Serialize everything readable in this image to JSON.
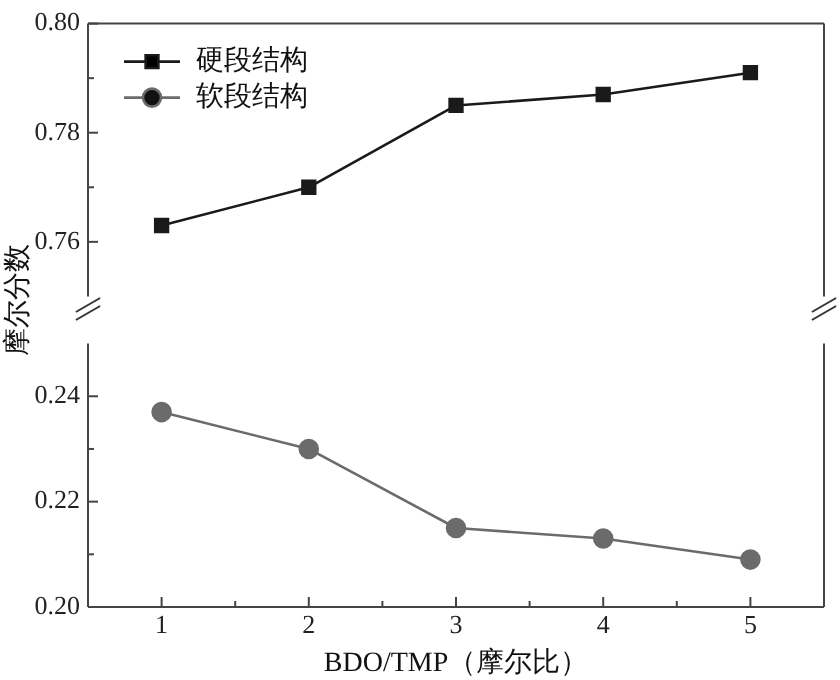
{
  "chart_data": [
    {
      "type": "line",
      "x": [
        1,
        2,
        3,
        4,
        5
      ],
      "xlim": [
        0.5,
        5.5
      ],
      "ylim": [
        0.75,
        0.8
      ],
      "yticks": [
        {
          "value": 0.76,
          "label": "0.76"
        },
        {
          "value": 0.77,
          "label": null
        },
        {
          "value": 0.78,
          "label": "0.78"
        },
        {
          "value": 0.79,
          "label": null
        },
        {
          "value": 0.8,
          "label": "0.80"
        }
      ],
      "tick_labels": "y",
      "legend": "top left",
      "series": [
        {
          "name": "硬段结构",
          "color": "#1a1a1a",
          "marker": "square",
          "values": [
            0.763,
            0.77,
            0.785,
            0.787,
            0.791
          ]
        },
        {
          "name": "软段结构",
          "color": "#6b6b6b",
          "marker": "circle",
          "values": [
            null,
            null,
            null,
            null,
            null
          ]
        }
      ]
    },
    {
      "type": "line",
      "x": [
        1,
        2,
        3,
        4,
        5
      ],
      "xlim": [
        0.5,
        5.5
      ],
      "xticks": [
        1,
        {
          "value": 1.5,
          "label": null
        },
        2,
        {
          "value": 2.5,
          "label": null
        },
        3,
        {
          "value": 3.5,
          "label": null
        },
        4,
        {
          "value": 4.5,
          "label": null
        },
        5
      ],
      "ylim": [
        0.2,
        0.25
      ],
      "yticks": [
        {
          "value": 0.2,
          "label": "0.20"
        },
        {
          "value": 0.21,
          "label": null
        },
        {
          "value": 0.22,
          "label": "0.22"
        },
        {
          "value": 0.23,
          "label": null
        },
        {
          "value": 0.24,
          "label": "0.24"
        }
      ],
      "xlabel": "BDO/TMP（摩尔比）",
      "ylabel": "摩尔分数",
      "series": [
        {
          "color": "#1a1a1a",
          "marker": "square",
          "values": [
            null,
            null,
            null,
            null,
            null
          ]
        },
        {
          "color": "#6b6b6b",
          "marker": "circle",
          "values": [
            0.237,
            0.23,
            0.215,
            0.213,
            0.209
          ]
        }
      ]
    }
  ]
}
